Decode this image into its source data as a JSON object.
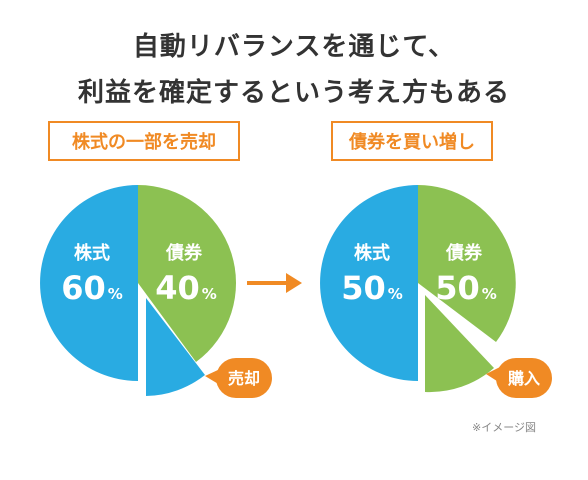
{
  "title": {
    "line1": "自動リバランスを通じて、",
    "line2": "利益を確定するという考え方もある"
  },
  "left": {
    "label": "株式の一部を売却",
    "segments": [
      {
        "name": "株式",
        "value": 60,
        "unit": "%",
        "color": "#29abe2"
      },
      {
        "name": "債券",
        "value": 40,
        "unit": "%",
        "color": "#8cc152"
      }
    ],
    "callout": "売却"
  },
  "right": {
    "label": "債券を買い増し",
    "segments": [
      {
        "name": "株式",
        "value": 50,
        "unit": "%",
        "color": "#29abe2"
      },
      {
        "name": "債券",
        "value": 50,
        "unit": "%",
        "color": "#8cc152"
      }
    ],
    "callout": "購入"
  },
  "colors": {
    "accent": "#f08a24",
    "stock": "#29abe2",
    "bond": "#8cc152"
  },
  "note": "※イメージ図"
}
